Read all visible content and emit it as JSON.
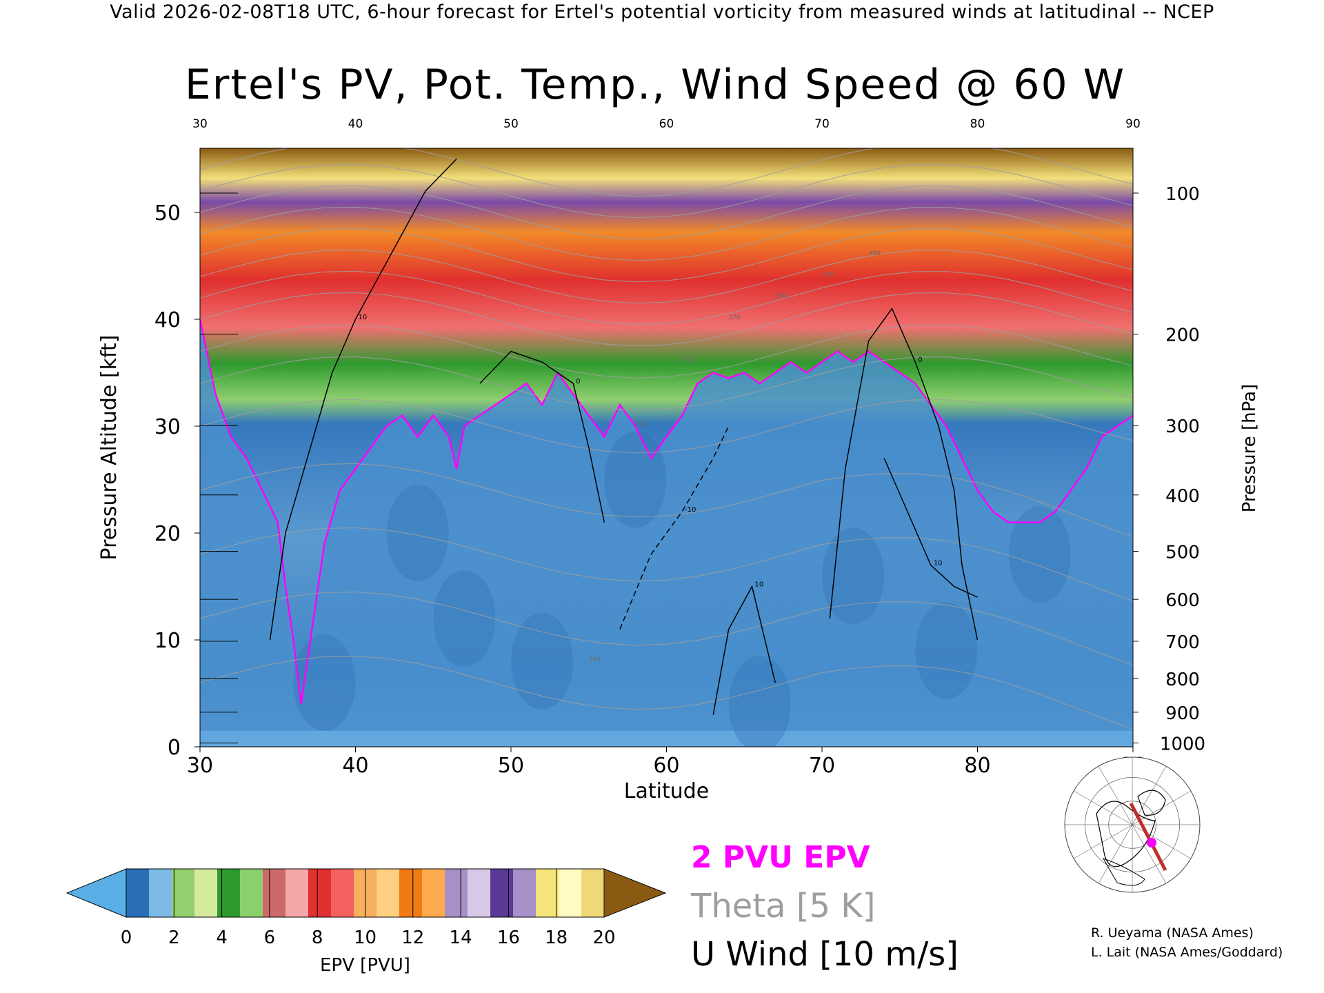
{
  "header": "Valid 2026-02-08T18 UTC, 6-hour forecast for Ertel's potential vorticity from measured winds at latitudinal -- NCEP",
  "chart_data": {
    "type": "heatmap",
    "title": "Ertel's PV, Pot. Temp., Wind Speed @ 60 W",
    "xlabel": "Latitude",
    "ylabel": "Pressure Altitude [kft]",
    "ylabel_right": "Pressure [hPa]",
    "xlim": [
      30,
      90
    ],
    "ylim": [
      0,
      56
    ],
    "x_ticks": [
      30,
      40,
      50,
      60,
      70,
      80,
      90
    ],
    "y_ticks": [
      0,
      10,
      20,
      30,
      40,
      50
    ],
    "pressure_levels_hPa": [
      100,
      200,
      300,
      400,
      500,
      600,
      700,
      800,
      900,
      1000
    ],
    "pv_2pvu_contour": {
      "lat": [
        30,
        31,
        32,
        33,
        34,
        35,
        35.5,
        36,
        36.5,
        37,
        37.5,
        38,
        39,
        40,
        41,
        42,
        43,
        44,
        45,
        46,
        46.5,
        47,
        48,
        49,
        50,
        51,
        52,
        53,
        54,
        55,
        56,
        57,
        58,
        59,
        60,
        61,
        62,
        63,
        64,
        65,
        66,
        67,
        68,
        69,
        70,
        71,
        72,
        73,
        74,
        75,
        76,
        77,
        78,
        79,
        80,
        81,
        82,
        83,
        84,
        85,
        86,
        87,
        88,
        89,
        90
      ],
      "kft": [
        40,
        33,
        29,
        27,
        24,
        21,
        15,
        10,
        4,
        9,
        14,
        19,
        24,
        26,
        28,
        30,
        31,
        29,
        31,
        29,
        26,
        30,
        31,
        32,
        33,
        34,
        32,
        35,
        33,
        31,
        29,
        32,
        30,
        27,
        29,
        31,
        34,
        35,
        34.5,
        35,
        34,
        35,
        36,
        35,
        36,
        37,
        36,
        37,
        36,
        35,
        34,
        32,
        30,
        27,
        24,
        22,
        21,
        21,
        21,
        22,
        24,
        26,
        29,
        30,
        31
      ]
    },
    "u_wind_contours_10ms": [
      {
        "label": "10",
        "lat": [
          34.5,
          35.5,
          36.5,
          37.5,
          38.5,
          40,
          41.5,
          43,
          44.5,
          46.5
        ],
        "kft": [
          10,
          20,
          25,
          30,
          35,
          40,
          44,
          48,
          52,
          55
        ]
      },
      {
        "label": "0",
        "lat": [
          48,
          50,
          52,
          54,
          55,
          56
        ],
        "kft": [
          34,
          37,
          36,
          34,
          28,
          21
        ]
      },
      {
        "label": "10",
        "lat": [
          63,
          64,
          65.5,
          67
        ],
        "kft": [
          3,
          11,
          15,
          6
        ]
      },
      {
        "label": "0",
        "lat": [
          70.5,
          71.5,
          73,
          74.5,
          76,
          77.5,
          78.5,
          79,
          80
        ],
        "kft": [
          12,
          26,
          38,
          41,
          36,
          30,
          24,
          17,
          10
        ]
      },
      {
        "label": "10",
        "lat": [
          74,
          75.5,
          77,
          78.5,
          80
        ],
        "kft": [
          27,
          22,
          17,
          15,
          14
        ]
      },
      {
        "label": "-10",
        "lat": [
          57,
          59,
          61,
          63,
          64
        ],
        "kft": [
          11,
          18,
          22,
          27,
          30
        ]
      }
    ],
    "theta_labels": [
      290,
      310,
      350,
      370,
      380,
      390,
      400
    ],
    "colorbar": {
      "title": "EPV [PVU]",
      "ticks": [
        0,
        2,
        4,
        6,
        8,
        10,
        12,
        14,
        16,
        18,
        20
      ],
      "colors": [
        "#5ab0e6",
        "#2a70b8",
        "#7dbbe6",
        "#93cf6c",
        "#d4ea9c",
        "#2e9a2e",
        "#8ad06c",
        "#cc6a6a",
        "#f5a6a6",
        "#e03030",
        "#f56060",
        "#f7b05e",
        "#fccf82",
        "#f07a14",
        "#fcab4e",
        "#a890c8",
        "#d6c8e6",
        "#5a3a96",
        "#a890c8",
        "#f5e47a",
        "#fffbc2",
        "#f0d87a",
        "#8b5a12"
      ]
    }
  },
  "legend": {
    "pv": "2 PVU EPV",
    "theta": "Theta [5 K]",
    "wind": "U Wind [10 m/s]",
    "colors": {
      "pv": "#ff00ff",
      "theta": "#9e9e9e",
      "wind": "#000000"
    }
  },
  "credits": [
    "R. Ueyama (NASA Ames)",
    "L. Lait (NASA Ames/Goddard)"
  ]
}
